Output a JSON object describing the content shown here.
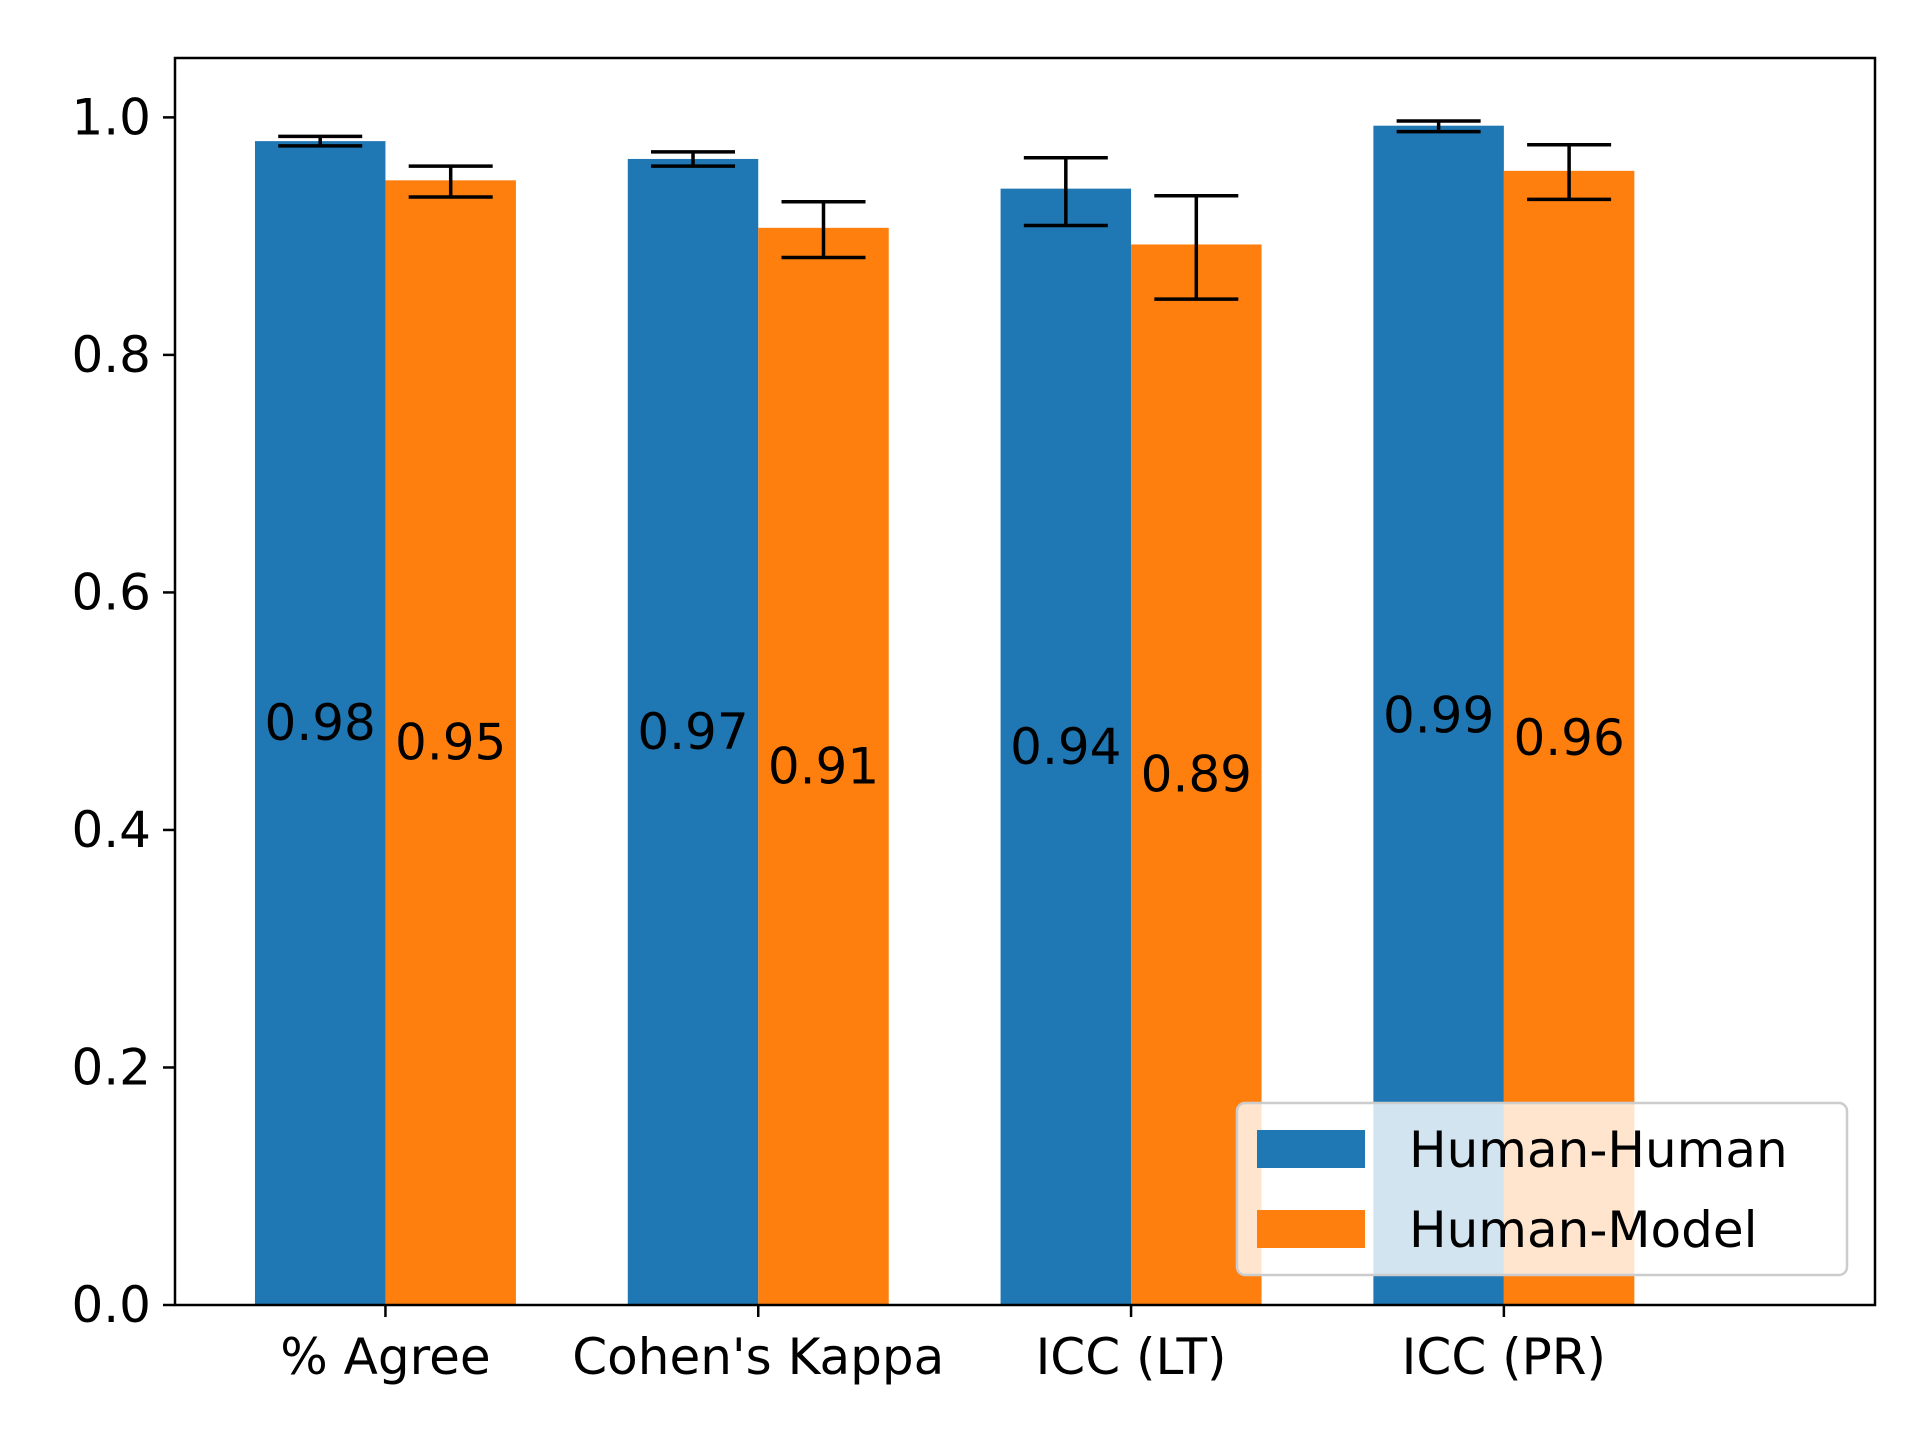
{
  "chart_data": {
    "type": "bar",
    "categories": [
      "% Agree",
      "Cohen's Kappa",
      "ICC (LT)",
      "ICC (PR)"
    ],
    "series": [
      {
        "name": "Human-Human",
        "color": "#1f77b4",
        "values": [
          0.98,
          0.965,
          0.94,
          0.993
        ],
        "labels": [
          "0.98",
          "0.97",
          "0.94",
          "0.99"
        ],
        "err_low": [
          0.976,
          0.959,
          0.909,
          0.988
        ],
        "err_high": [
          0.984,
          0.971,
          0.966,
          0.997
        ]
      },
      {
        "name": "Human-Model",
        "color": "#ff7f0e",
        "values": [
          0.947,
          0.907,
          0.893,
          0.955
        ],
        "labels": [
          "0.95",
          "0.91",
          "0.89",
          "0.96"
        ],
        "err_low": [
          0.933,
          0.882,
          0.847,
          0.931
        ],
        "err_high": [
          0.959,
          0.929,
          0.934,
          0.977
        ]
      }
    ],
    "yticks": [
      "0.0",
      "0.2",
      "0.4",
      "0.6",
      "0.8",
      "1.0"
    ],
    "ylim": [
      0,
      1.05
    ],
    "legend_position": "lower-right",
    "grid": false,
    "title": "",
    "xlabel": "",
    "ylabel": ""
  }
}
